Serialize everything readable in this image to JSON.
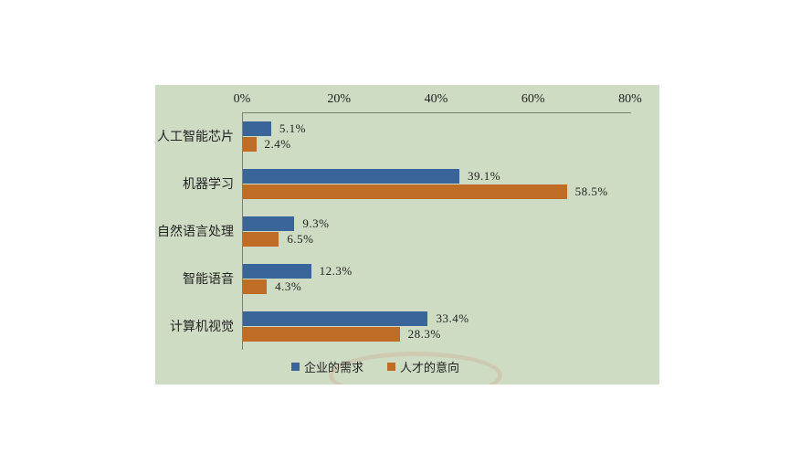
{
  "panel": {
    "background": "#cedcc3"
  },
  "chart_data": {
    "type": "bar",
    "orientation": "horizontal",
    "title": "",
    "xlabel": "",
    "ylabel": "",
    "categories": [
      "人工智能芯片",
      "机器学习",
      "自然语言处理",
      "智能语音",
      "计算机视觉"
    ],
    "series": [
      {
        "name": "企业的需求",
        "color": "#3a659a",
        "values": [
          5.1,
          39.1,
          9.3,
          12.3,
          33.4
        ]
      },
      {
        "name": "人才的意向",
        "color": "#bf6d26",
        "values": [
          2.4,
          58.5,
          6.5,
          4.3,
          28.3
        ]
      }
    ],
    "value_suffix": "%",
    "xlim": [
      0,
      80
    ],
    "x_ticks": [
      "0%",
      "20%",
      "40%",
      "60%",
      "80%"
    ],
    "grid": false,
    "axis_color": "#79827a",
    "legend_position": "bottom"
  }
}
